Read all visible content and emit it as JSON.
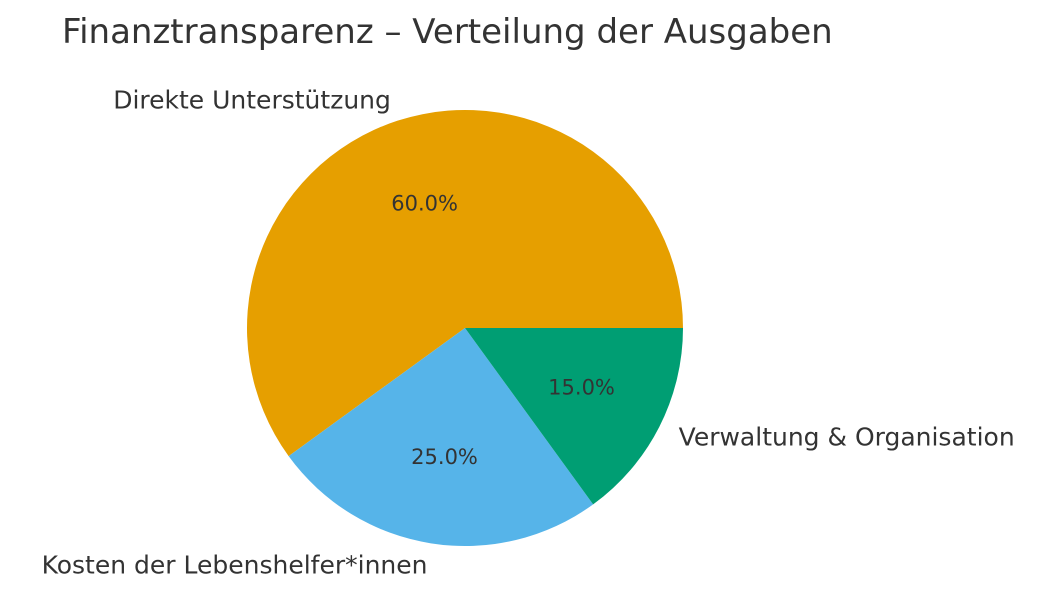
{
  "chart_data": {
    "type": "pie",
    "title": "Finanztransparenz – Verteilung der Ausgaben",
    "slices": [
      {
        "label": "Direkte Unterstützung",
        "value": 60.0,
        "pct_label": "60.0%",
        "color": "#E69F00"
      },
      {
        "label": "Kosten der Lebenshelfer*innen",
        "value": 25.0,
        "pct_label": "25.0%",
        "color": "#56B4E9"
      },
      {
        "label": "Verwaltung & Organisation",
        "value": 15.0,
        "pct_label": "15.0%",
        "color": "#009E73"
      }
    ],
    "start_angle_deg": 0,
    "direction": "counterclockwise",
    "legend": "none"
  }
}
